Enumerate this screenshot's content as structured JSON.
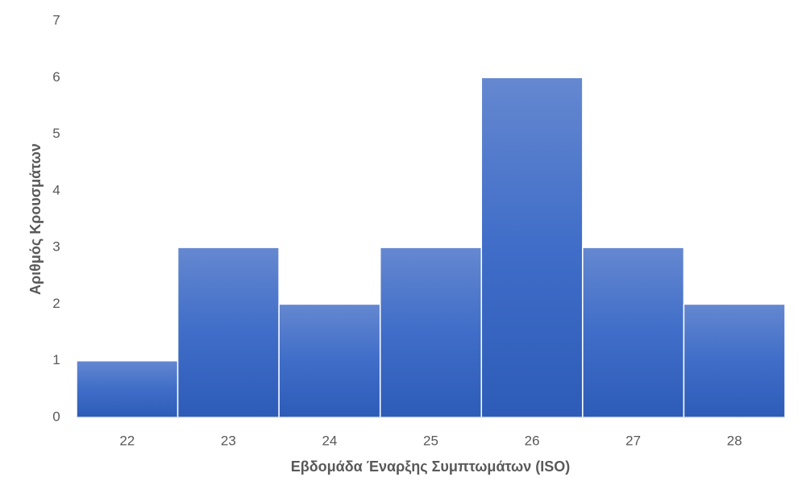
{
  "chart_data": {
    "type": "bar",
    "x_label": "Εβδομάδα Έναρξης Συμπτωμάτων (ISO)",
    "y_label": "Αριθμός Κρουσμάτων",
    "categories": [
      "22",
      "23",
      "24",
      "25",
      "26",
      "27",
      "28"
    ],
    "values": [
      1,
      3,
      2,
      3,
      6,
      3,
      2
    ],
    "color": "#4472c4",
    "ylim": [
      0,
      7
    ],
    "yticks": [
      0,
      1,
      2,
      3,
      4,
      5,
      6,
      7
    ],
    "grid": false
  }
}
